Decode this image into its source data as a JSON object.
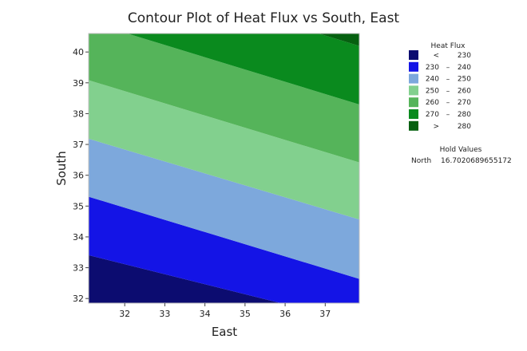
{
  "chart_data": {
    "type": "contour",
    "title": "Contour Plot of Heat Flux vs South, East",
    "xlabel": "East",
    "ylabel": "South",
    "xlim": [
      31.1,
      37.85
    ],
    "ylim": [
      31.85,
      40.6
    ],
    "x_ticks": [
      32,
      33,
      34,
      35,
      36,
      37
    ],
    "y_ticks": [
      32,
      33,
      34,
      35,
      36,
      37,
      38,
      39,
      40
    ],
    "contour_boundaries": [
      {
        "level": 230,
        "left_y": 33.42,
        "right_y": 31.2
      },
      {
        "level": 240,
        "left_y": 35.32,
        "right_y": 32.62
      },
      {
        "level": 250,
        "left_y": 37.2,
        "right_y": 34.55
      },
      {
        "level": 260,
        "left_y": 39.1,
        "right_y": 36.4
      },
      {
        "level": 270,
        "left_y": 41.0,
        "right_y": 38.28
      },
      {
        "level": 280,
        "left_y": 42.9,
        "right_y": 40.18
      }
    ],
    "legend": {
      "title": "Heat Flux",
      "position": "top-right",
      "entries": [
        {
          "low": "<",
          "high": "230",
          "sep": "",
          "color": "#0c0c70"
        },
        {
          "low": "230",
          "sep": "–",
          "high": "240",
          "color": "#1414e6"
        },
        {
          "low": "240",
          "sep": "–",
          "high": "250",
          "color": "#7da8dc"
        },
        {
          "low": "250",
          "sep": "–",
          "high": "260",
          "color": "#82d08e"
        },
        {
          "low": "260",
          "sep": "–",
          "high": "270",
          "color": "#55b45a"
        },
        {
          "low": "270",
          "sep": "–",
          "high": "280",
          "color": "#0a8a1e"
        },
        {
          "low": ">",
          "sep": "",
          "high": "280",
          "color": "#066010"
        }
      ]
    },
    "hold_values": {
      "title": "Hold Values",
      "items": [
        {
          "name": "North",
          "value": "16.7020689655172"
        }
      ]
    }
  }
}
